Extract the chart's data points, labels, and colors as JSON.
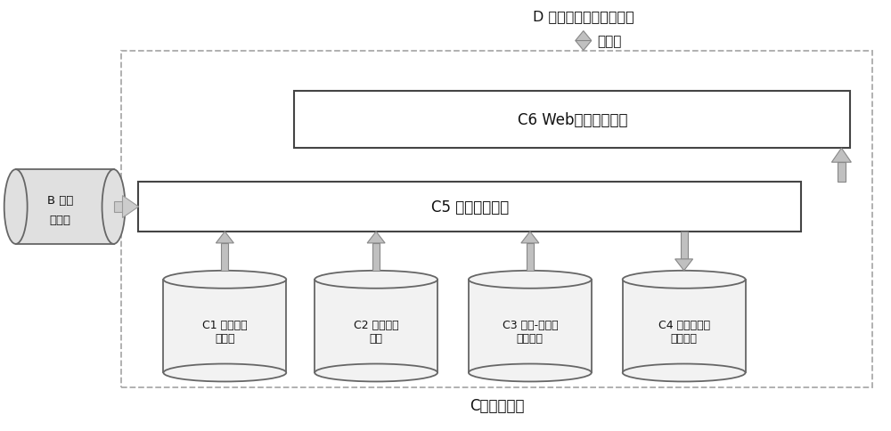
{
  "title_D": "D 各类考勤记录查看终端",
  "label_internet": "互联网",
  "label_C6": "C6 Web查询服务模块",
  "label_C5": "C5 考勤程序模块",
  "label_B_line1": "B 视频",
  "label_B_line2": "服务器",
  "label_C": "C考勤服务器",
  "db_labels": [
    "C1 教室座位\n模板库",
    "C2 空座直方\n图库",
    "C3 座位-学号关\n系数据库",
    "C4 缺席学生记\n录数据库"
  ],
  "bg_color": "#ffffff",
  "border_color": "#444444",
  "arrow_fill": "#bbbbbb",
  "arrow_edge": "#888888",
  "dashed_border": "#999999",
  "font_color": "#111111",
  "cyl_fill": "#f0f0f0",
  "box_fill": "#ffffff"
}
